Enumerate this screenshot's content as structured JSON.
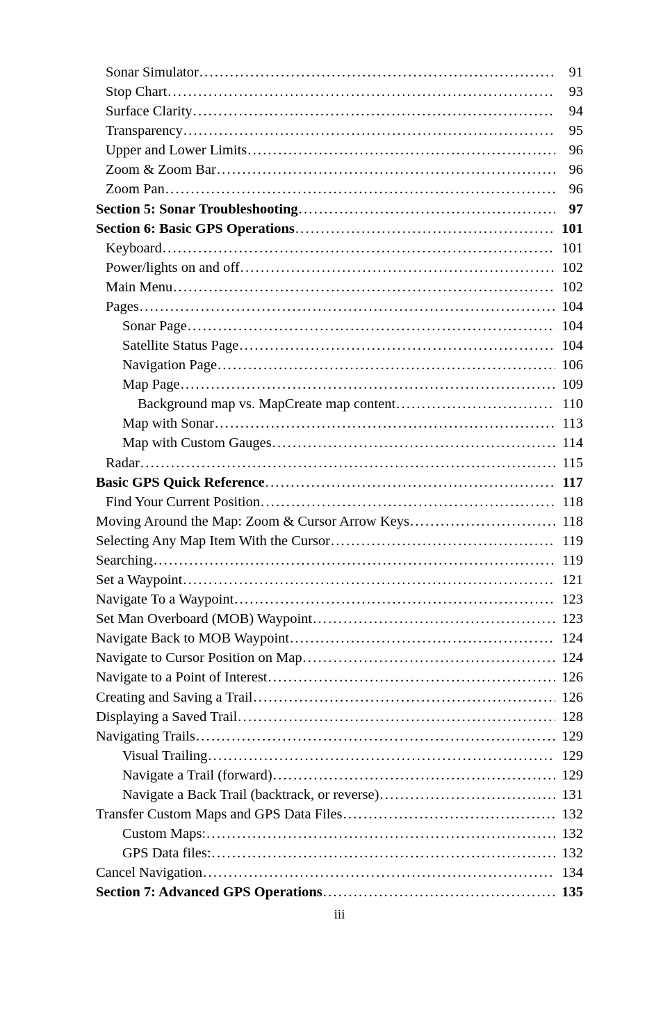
{
  "footer": "iii",
  "entries": [
    {
      "label": "Sonar Simulator",
      "page": "91",
      "indent": 1,
      "bold": false
    },
    {
      "label": "Stop Chart",
      "page": "93",
      "indent": 1,
      "bold": false
    },
    {
      "label": "Surface Clarity",
      "page": "94",
      "indent": 1,
      "bold": false
    },
    {
      "label": "Transparency",
      "page": "95",
      "indent": 1,
      "bold": false
    },
    {
      "label": "Upper and Lower Limits",
      "page": "96",
      "indent": 1,
      "bold": false
    },
    {
      "label": "Zoom & Zoom Bar",
      "page": "96",
      "indent": 1,
      "bold": false
    },
    {
      "label": "Zoom Pan",
      "page": "96",
      "indent": 1,
      "bold": false
    },
    {
      "label": "Section 5: Sonar Troubleshooting",
      "page": "97",
      "indent": 0,
      "bold": true
    },
    {
      "label": "Section 6: Basic GPS Operations",
      "page": "101",
      "indent": 0,
      "bold": true
    },
    {
      "label": "Keyboard",
      "page": "101",
      "indent": 1,
      "bold": false
    },
    {
      "label": "Power/lights on and off",
      "page": "102",
      "indent": 1,
      "bold": false
    },
    {
      "label": "Main Menu",
      "page": "102",
      "indent": 1,
      "bold": false
    },
    {
      "label": "Pages",
      "page": "104",
      "indent": 1,
      "bold": false
    },
    {
      "label": "Sonar Page",
      "page": "104",
      "indent": 2,
      "bold": false
    },
    {
      "label": "Satellite Status Page",
      "page": "104",
      "indent": 2,
      "bold": false
    },
    {
      "label": "Navigation Page",
      "page": "106",
      "indent": 2,
      "bold": false
    },
    {
      "label": "Map Page",
      "page": "109",
      "indent": 2,
      "bold": false
    },
    {
      "label": "Background map vs. MapCreate map content",
      "page": "110",
      "indent": 3,
      "bold": false
    },
    {
      "label": "Map with Sonar",
      "page": "113",
      "indent": 2,
      "bold": false
    },
    {
      "label": "Map with Custom Gauges",
      "page": "114",
      "indent": 2,
      "bold": false
    },
    {
      "label": "Radar",
      "page": "115",
      "indent": 1,
      "bold": false
    },
    {
      "label": "Basic GPS Quick Reference",
      "page": "117",
      "indent": 0,
      "bold": true
    },
    {
      "label": "Find Your Current Position",
      "page": "118",
      "indent": 1,
      "bold": false
    },
    {
      "label": "Moving Around the Map: Zoom & Cursor Arrow Keys",
      "page": "118",
      "indent": 0,
      "bold": false
    },
    {
      "label": "Selecting Any Map Item With the Cursor",
      "page": "119",
      "indent": 0,
      "bold": false
    },
    {
      "label": "Searching",
      "page": "119",
      "indent": 0,
      "bold": false
    },
    {
      "label": "Set a Waypoint",
      "page": "121",
      "indent": 0,
      "bold": false
    },
    {
      "label": "Navigate To a Waypoint",
      "page": "123",
      "indent": 0,
      "bold": false
    },
    {
      "label": "Set Man Overboard (MOB) Waypoint",
      "page": "123",
      "indent": 0,
      "bold": false
    },
    {
      "label": "Navigate Back to MOB Waypoint",
      "page": "124",
      "indent": 0,
      "bold": false
    },
    {
      "label": "Navigate to Cursor Position on Map",
      "page": "124",
      "indent": 0,
      "bold": false
    },
    {
      "label": "Navigate to a Point of Interest",
      "page": "126",
      "indent": 0,
      "bold": false
    },
    {
      "label": "Creating and Saving a Trail",
      "page": "126",
      "indent": 0,
      "bold": false
    },
    {
      "label": "Displaying a Saved Trail",
      "page": "128",
      "indent": 0,
      "bold": false
    },
    {
      "label": "Navigating Trails",
      "page": "129",
      "indent": 0,
      "bold": false
    },
    {
      "label": "Visual Trailing",
      "page": "129",
      "indent": 2,
      "bold": false
    },
    {
      "label": "Navigate a Trail (forward)",
      "page": "129",
      "indent": 2,
      "bold": false
    },
    {
      "label": "Navigate a Back Trail (backtrack, or reverse)",
      "page": "131",
      "indent": 2,
      "bold": false
    },
    {
      "label": "Transfer Custom Maps and GPS Data Files",
      "page": "132",
      "indent": 0,
      "bold": false
    },
    {
      "label": "Custom Maps:",
      "page": "132",
      "indent": 2,
      "bold": false
    },
    {
      "label": "GPS Data files:",
      "page": "132",
      "indent": 2,
      "bold": false
    },
    {
      "label": "Cancel Navigation",
      "page": "134",
      "indent": 0,
      "bold": false
    },
    {
      "label": "Section 7:  Advanced GPS Operations",
      "page": "135",
      "indent": 0,
      "bold": true
    }
  ]
}
